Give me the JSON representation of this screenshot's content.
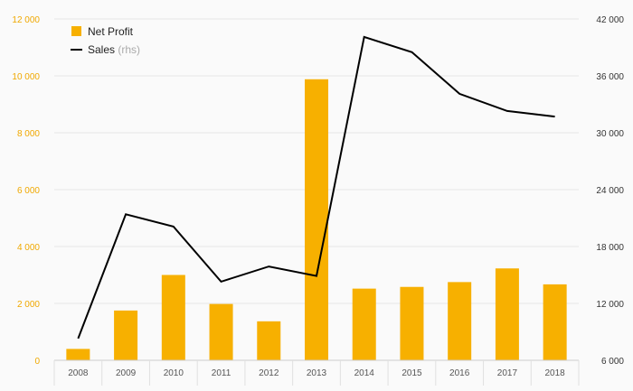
{
  "chart_data": {
    "type": "bar",
    "categories": [
      "2008",
      "2009",
      "2010",
      "2011",
      "2012",
      "2013",
      "2014",
      "2015",
      "2016",
      "2017",
      "2018"
    ],
    "series": [
      {
        "name": "Net Profit",
        "type": "bar",
        "axis": "left",
        "color": "#f7b000",
        "values": [
          400,
          1750,
          3000,
          1980,
          1370,
          9880,
          2520,
          2580,
          2750,
          3230,
          2670
        ]
      },
      {
        "name": "Sales",
        "name_suffix": "(rhs)",
        "type": "line",
        "axis": "right",
        "color": "#000000",
        "values": [
          8300,
          21400,
          20100,
          14300,
          15900,
          14900,
          40100,
          38500,
          34100,
          32300,
          31700
        ]
      }
    ],
    "y_left": {
      "ylim": [
        0,
        12000
      ],
      "ticks": [
        "0",
        "2 000",
        "4 000",
        "6 000",
        "8 000",
        "10 000",
        "12 000"
      ],
      "tick_values": [
        0,
        2000,
        4000,
        6000,
        8000,
        10000,
        12000
      ],
      "color": "#f0a800"
    },
    "y_right": {
      "ylim": [
        6000,
        42000
      ],
      "ticks": [
        "6 000",
        "12 000",
        "18 000",
        "24 000",
        "30 000",
        "36 000",
        "42 000"
      ],
      "tick_values": [
        6000,
        12000,
        18000,
        24000,
        30000,
        36000,
        42000
      ]
    },
    "grid": true,
    "legend": "top-left"
  }
}
